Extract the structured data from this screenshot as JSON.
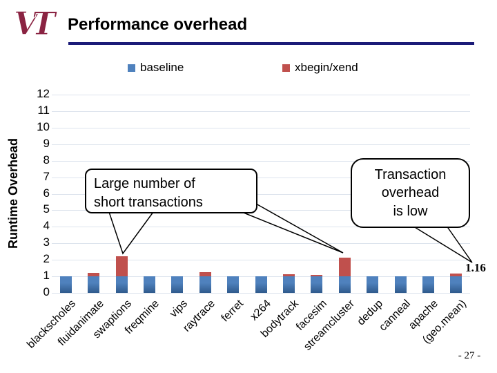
{
  "header": {
    "title": "Performance overhead",
    "logo_text": "VT"
  },
  "legend": [
    {
      "label": "baseline",
      "color": "#4F81BD"
    },
    {
      "label": "xbegin/xend",
      "color": "#C0504D"
    }
  ],
  "callouts": {
    "large": {
      "lines": [
        "Large number of",
        "short transactions"
      ]
    },
    "txn": {
      "lines": [
        "Transaction",
        "overhead",
        "is low"
      ]
    }
  },
  "page_number": "- 27 -",
  "colors": {
    "bar_blue": "#4F81BD",
    "bar_blue_dark": "#2F5A8C",
    "bar_red": "#C0504D",
    "bar_red_dark": "#943734",
    "underline": "#1B1B78",
    "gridline": "#DCE3ED",
    "logo_maroon": "#8A2342"
  },
  "chart_data": {
    "type": "bar",
    "title": "",
    "xlabel": "",
    "ylabel": "Runtime Overhead",
    "ylim": [
      0,
      12
    ],
    "yticks": [
      0,
      1,
      2,
      3,
      4,
      5,
      6,
      7,
      8,
      9,
      10,
      11,
      12
    ],
    "grid": true,
    "legend_position": "top",
    "categories": [
      "blackscholes",
      "fluidanimate",
      "swaptions",
      "freqmine",
      "vips",
      "raytrace",
      "ferret",
      "x264",
      "bodytrack",
      "facesim",
      "streamcluster",
      "dedup",
      "canneal",
      "apache",
      "(geo.mean)"
    ],
    "series": [
      {
        "name": "baseline",
        "key": "baseline",
        "color": "#4F81BD",
        "values": [
          1,
          1,
          1,
          1,
          1,
          1,
          1,
          1,
          1,
          1,
          1,
          1,
          1,
          1,
          1
        ]
      },
      {
        "name": "xbegin/xend",
        "key": "xbegin",
        "color": "#C0504D",
        "values": [
          1.0,
          1.2,
          2.2,
          1.0,
          1.0,
          1.25,
          1.0,
          1.0,
          1.15,
          1.1,
          2.15,
          1.0,
          1.0,
          1.0,
          1.16
        ]
      }
    ],
    "data_labels": [
      {
        "category": "(geo.mean)",
        "series": "xbegin/xend",
        "text": "1.16"
      }
    ]
  }
}
